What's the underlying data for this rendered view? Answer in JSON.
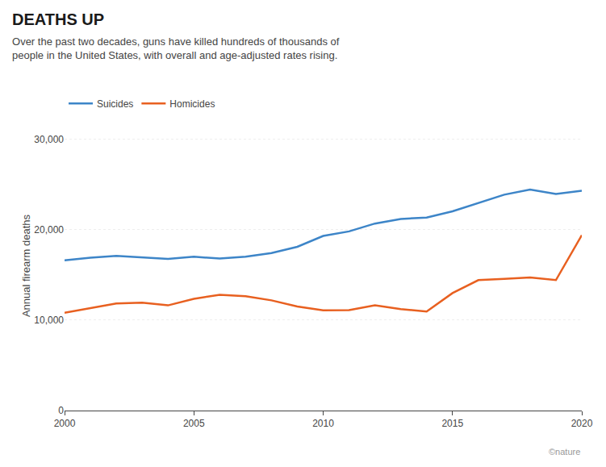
{
  "chart_data": {
    "type": "line",
    "title": "DEATHS UP",
    "subtitle": "Over the past two decades, guns have killed hundreds of thousands of\npeople in the United States, with overall and age-adjusted rates rising.",
    "ylabel": "Annual firearm deaths",
    "x": [
      2000,
      2001,
      2002,
      2003,
      2004,
      2005,
      2006,
      2007,
      2008,
      2009,
      2010,
      2011,
      2012,
      2013,
      2014,
      2015,
      2016,
      2017,
      2018,
      2019,
      2020
    ],
    "series": [
      {
        "name": "Suicides",
        "color": "#3d85c8",
        "values": [
          16600,
          16900,
          17100,
          16900,
          16750,
          17000,
          16800,
          17000,
          17400,
          18100,
          19300,
          19800,
          20666,
          21175,
          21334,
          22018,
          22938,
          23854,
          24432,
          23941,
          24292
        ]
      },
      {
        "name": "Homicides",
        "color": "#e86020",
        "values": [
          10801,
          11348,
          11829,
          11920,
          11624,
          12352,
          12791,
          12632,
          12179,
          11493,
          11078,
          11101,
          11622,
          11208,
          10945,
          12979,
          14415,
          14542,
          14717,
          14414,
          19384
        ]
      }
    ],
    "xlim": [
      2000,
      2020
    ],
    "xticks": [
      2000,
      2005,
      2010,
      2015,
      2020
    ],
    "ylim": [
      0,
      32000
    ],
    "yticks": [
      0,
      {
        "value": 10000,
        "label": "10,000"
      },
      {
        "value": 20000,
        "label": "20,000"
      },
      {
        "value": 30000,
        "label": "30,000"
      }
    ],
    "grid": true,
    "legend": "top left",
    "annotations": [
      "©nature"
    ]
  }
}
